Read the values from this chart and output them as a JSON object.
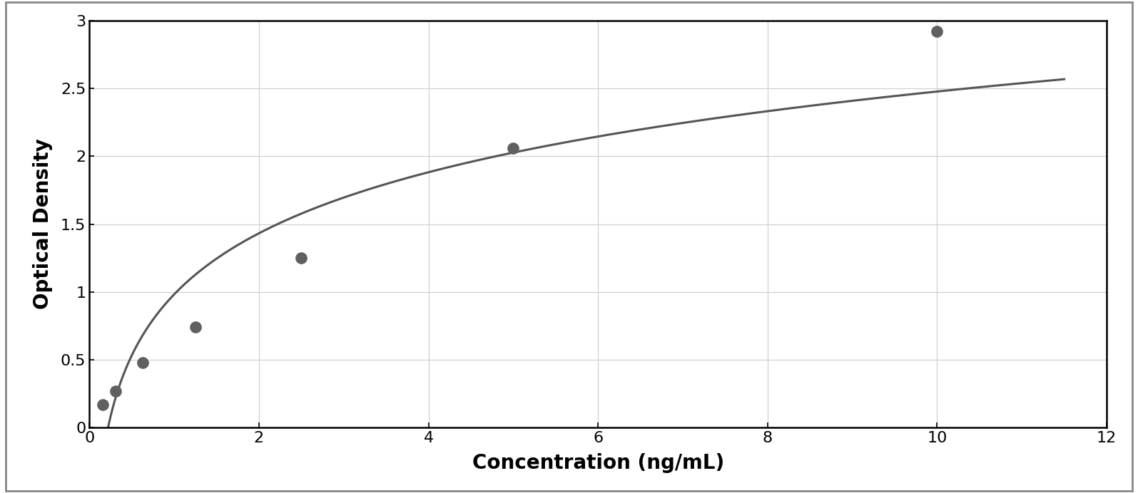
{
  "x_data": [
    0.156,
    0.313,
    0.625,
    1.25,
    2.5,
    5.0,
    10.0
  ],
  "y_data": [
    0.17,
    0.27,
    0.48,
    0.74,
    1.25,
    2.06,
    2.92
  ],
  "xlabel": "Concentration (ng/mL)",
  "ylabel": "Optical Density",
  "xlim": [
    0,
    12
  ],
  "ylim": [
    0,
    3.0
  ],
  "xticks": [
    0,
    2,
    4,
    6,
    8,
    10,
    12
  ],
  "yticks": [
    0,
    0.5,
    1.0,
    1.5,
    2.0,
    2.5,
    3.0
  ],
  "marker_color": "#606060",
  "line_color": "#555555",
  "grid_color": "#d0d0d0",
  "background_color": "#ffffff",
  "border_color": "#000000",
  "outer_frame_color": "#aaaaaa",
  "marker_size": 11,
  "line_width": 2.2,
  "xlabel_fontsize": 20,
  "ylabel_fontsize": 20,
  "tick_fontsize": 16,
  "fig_bg_color": "#ffffff"
}
